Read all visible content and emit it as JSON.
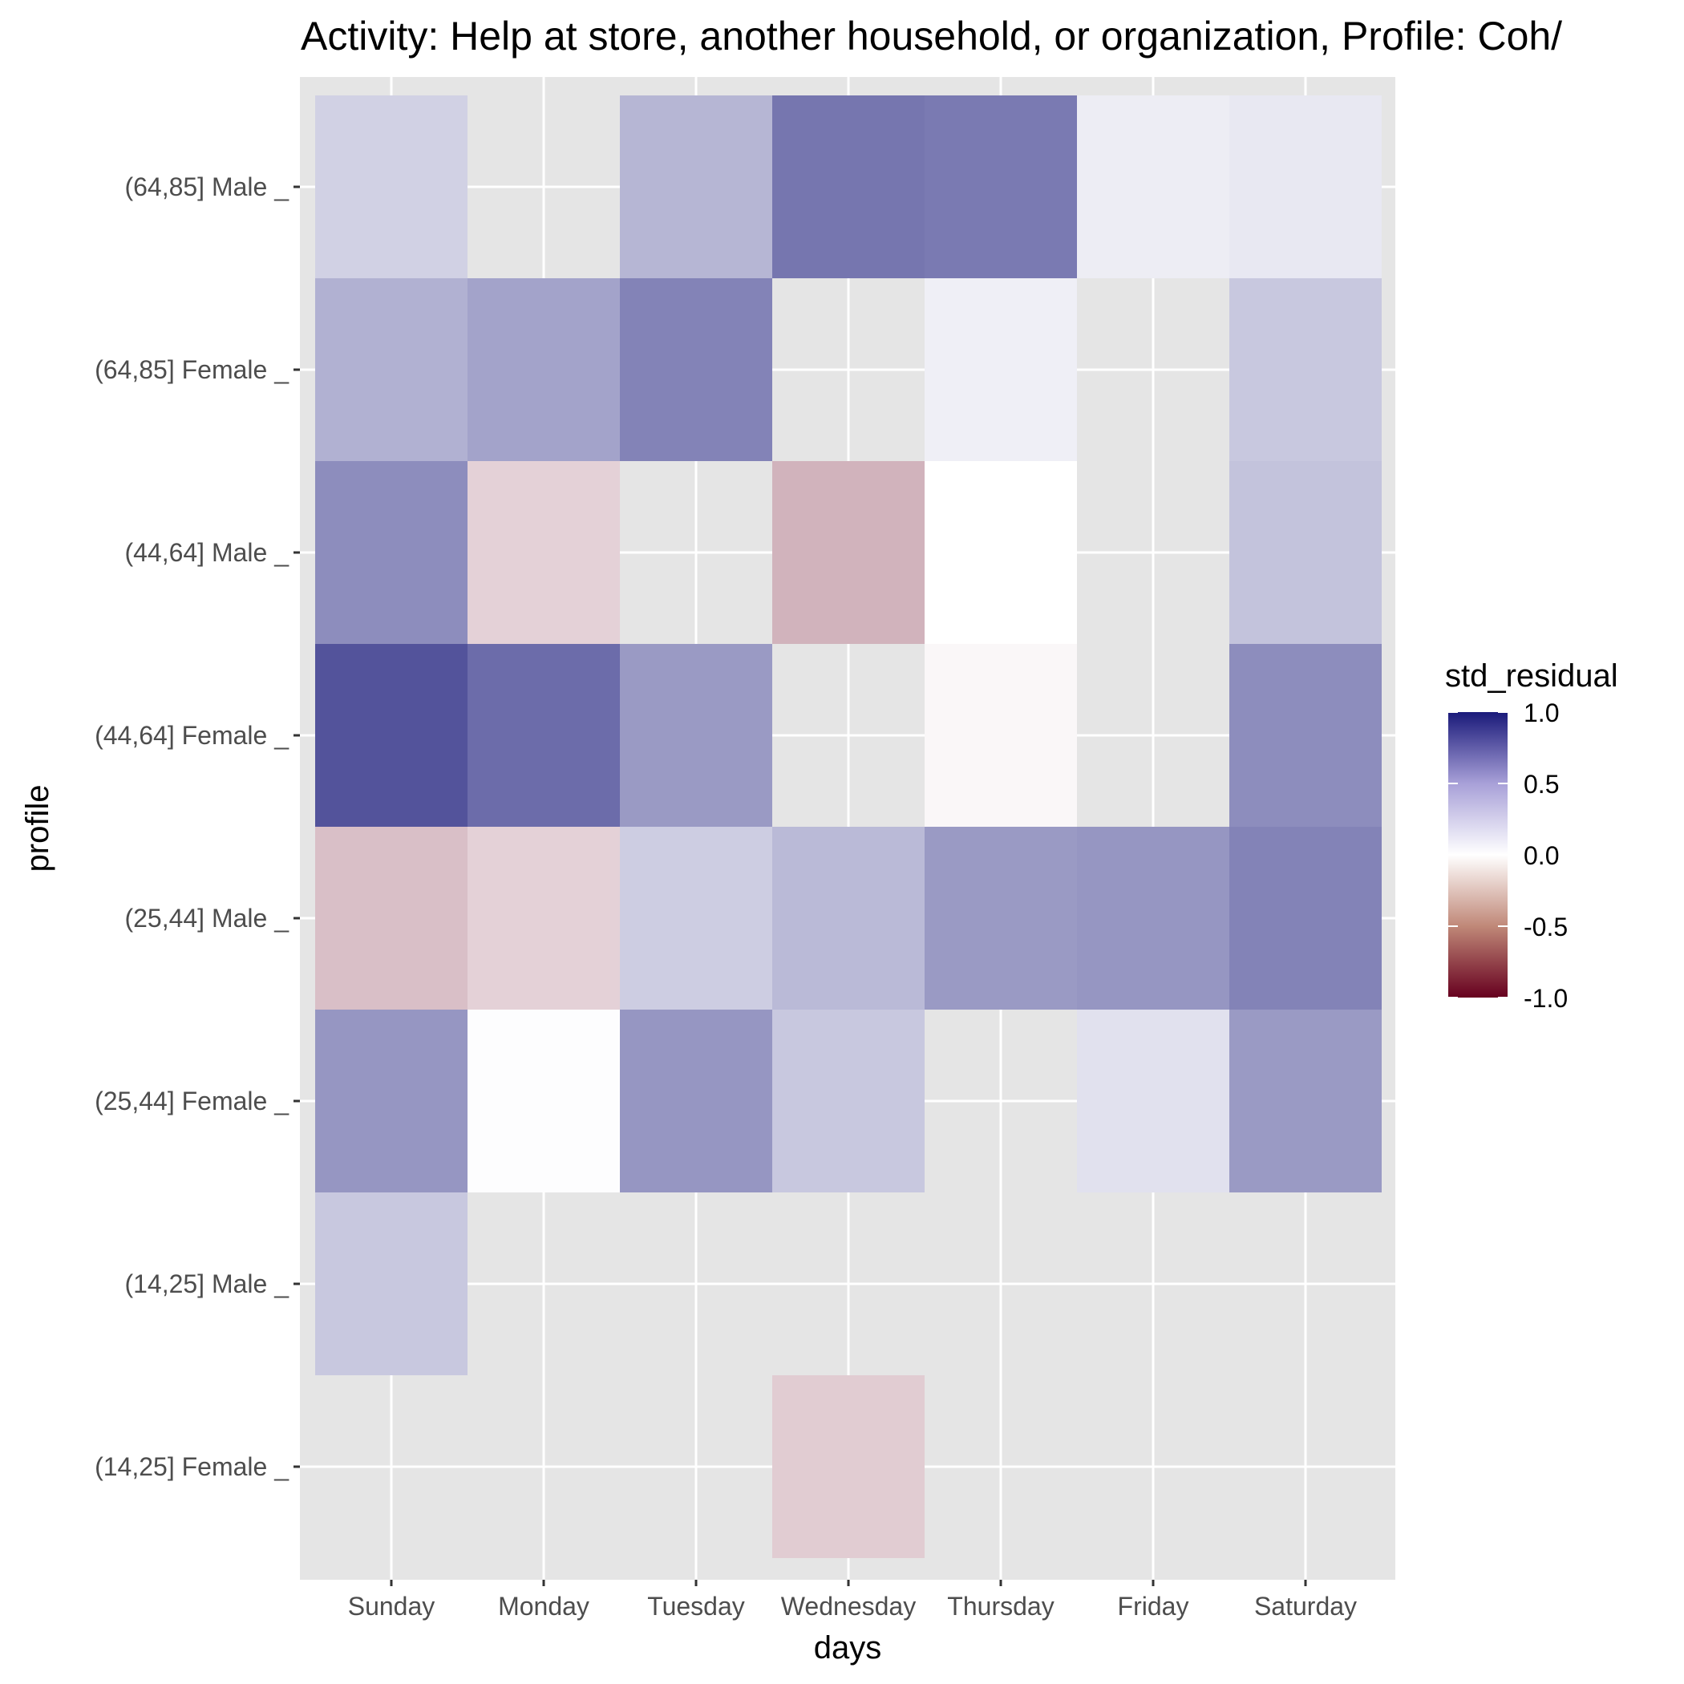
{
  "chart_data": {
    "type": "heatmap",
    "title": "Activity: Help at store, another household, or organization, Profile: Coh/",
    "xlabel": "days",
    "ylabel": "profile",
    "x_categories": [
      "Sunday",
      "Monday",
      "Tuesday",
      "Wednesday",
      "Thursday",
      "Friday",
      "Saturday"
    ],
    "y_categories": [
      "(64,85] Male _",
      "(64,85] Female _",
      "(44,64] Male _",
      "(44,64] Female _",
      "(25,44] Male _",
      "(25,44] Female _",
      "(14,25] Male _",
      "(14,25] Female _"
    ],
    "values": [
      [
        0.2,
        null,
        0.32,
        0.6,
        0.58,
        0.08,
        0.1
      ],
      [
        0.34,
        0.4,
        0.54,
        null,
        0.07,
        null,
        0.24
      ],
      [
        0.5,
        -0.18,
        null,
        -0.3,
        0.0,
        null,
        0.26
      ],
      [
        0.75,
        0.64,
        0.44,
        null,
        -0.03,
        null,
        0.5
      ],
      [
        -0.25,
        -0.18,
        0.22,
        0.3,
        0.44,
        0.46,
        0.54
      ],
      [
        0.46,
        0.01,
        0.46,
        0.24,
        null,
        0.13,
        0.44
      ],
      [
        0.24,
        null,
        null,
        null,
        null,
        null,
        null
      ],
      [
        null,
        null,
        null,
        -0.2,
        null,
        null,
        null
      ]
    ],
    "legend": {
      "title": "std_residual",
      "breaks": [
        1.0,
        0.5,
        0.0,
        -0.5,
        -1.0
      ],
      "labels": [
        "1.0",
        "0.5",
        "0.0",
        "-0.5",
        "-1.0"
      ],
      "low_color": "#67001f",
      "mid_color": "#ffffff",
      "high_color": "#1a1a7a",
      "position": "right"
    },
    "ylim": [
      -1.0,
      1.0
    ],
    "grid": true,
    "panel_background": "#e5e5e5",
    "grid_color": "#ffffff"
  }
}
